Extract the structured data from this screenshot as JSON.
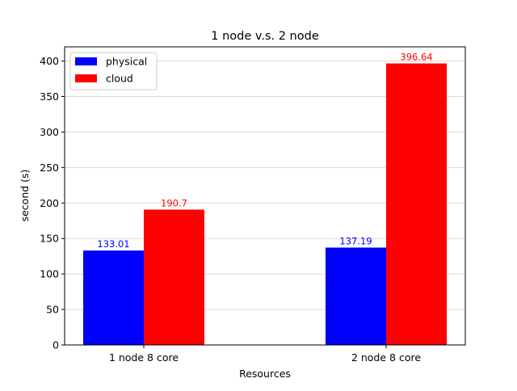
{
  "chart_data": {
    "type": "bar",
    "title": "1 node v.s. 2 node",
    "xlabel": "Resources",
    "ylabel": "second (s)",
    "categories": [
      "1 node 8 core",
      "2 node 8 core"
    ],
    "ylim": [
      0,
      420
    ],
    "yticks": [
      0,
      50,
      100,
      150,
      200,
      250,
      300,
      350,
      400
    ],
    "grid": "horizontal",
    "legend_position": "top-left",
    "series": [
      {
        "name": "physical",
        "color": "#0000ff",
        "values": [
          133.01,
          137.19
        ],
        "labels": [
          "133.01",
          "137.19"
        ]
      },
      {
        "name": "cloud",
        "color": "#ff0000",
        "values": [
          190.7,
          396.64
        ],
        "labels": [
          "190.7",
          "396.64"
        ]
      }
    ]
  }
}
